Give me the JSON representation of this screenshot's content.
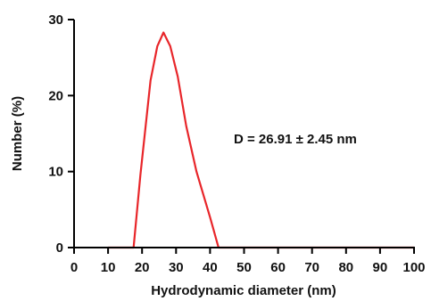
{
  "chart_data": {
    "type": "line",
    "xlabel": "Hydrodynamic diameter (nm)",
    "ylabel": "Number (%)",
    "xlim": [
      0,
      100
    ],
    "ylim": [
      0,
      30
    ],
    "xticks": [
      0,
      10,
      20,
      30,
      40,
      50,
      60,
      70,
      80,
      90,
      100
    ],
    "yticks": [
      0,
      10,
      20,
      30
    ],
    "grid": false,
    "annotation": "D = 26.91 ± 2.45 nm",
    "series": [
      {
        "color": "#e8262a",
        "x": [
          10,
          17.5,
          19.5,
          22.5,
          24.5,
          26.3,
          28.3,
          30.5,
          33,
          36,
          40,
          42.5,
          45,
          100
        ],
        "y": [
          0,
          0,
          9.5,
          22,
          26.5,
          28.3,
          26.5,
          22.5,
          16,
          10,
          4,
          0,
          0,
          0
        ]
      }
    ]
  }
}
